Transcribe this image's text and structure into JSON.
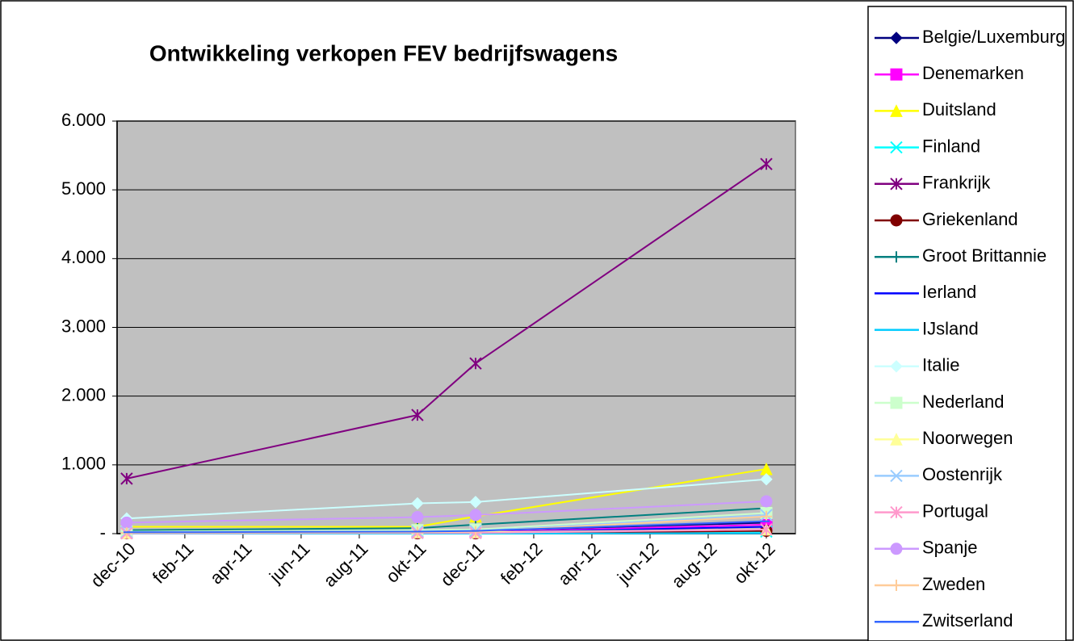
{
  "chart_data": {
    "type": "line",
    "title": "Ontwikkeling verkopen FEV bedrijfswagens",
    "x": [
      "2010-12",
      "2011-10",
      "2011-12",
      "2012-10"
    ],
    "xlim": [
      "2010-12",
      "2012-11"
    ],
    "xticks": [
      {
        "value": "2010-12",
        "label": "dec-10"
      },
      {
        "value": "2011-02",
        "label": "feb-11"
      },
      {
        "value": "2011-04",
        "label": "apr-11"
      },
      {
        "value": "2011-06",
        "label": "jun-11"
      },
      {
        "value": "2011-08",
        "label": "aug-11"
      },
      {
        "value": "2011-10",
        "label": "okt-11"
      },
      {
        "value": "2011-12",
        "label": "dec-11"
      },
      {
        "value": "2012-02",
        "label": "feb-12"
      },
      {
        "value": "2012-04",
        "label": "apr-12"
      },
      {
        "value": "2012-06",
        "label": "jun-12"
      },
      {
        "value": "2012-08",
        "label": "aug-12"
      },
      {
        "value": "2012-10",
        "label": "okt-12"
      }
    ],
    "ylim": [
      0,
      6000
    ],
    "yticks": [
      {
        "value": 0,
        "label": "-"
      },
      {
        "value": 1000,
        "label": "1.000"
      },
      {
        "value": 2000,
        "label": "2.000"
      },
      {
        "value": 3000,
        "label": "3.000"
      },
      {
        "value": 4000,
        "label": "4.000"
      },
      {
        "value": 5000,
        "label": "5.000"
      },
      {
        "value": 6000,
        "label": "6.000"
      }
    ],
    "grid": true,
    "legend": "right",
    "series": [
      {
        "name": "Belgie/Luxemburg",
        "color": "#000080",
        "marker": "diamond",
        "values": [
          20,
          30,
          40,
          160
        ]
      },
      {
        "name": "Denemarken",
        "color": "#FF00FF",
        "marker": "square",
        "values": [
          10,
          20,
          20,
          130
        ]
      },
      {
        "name": "Duitsland",
        "color": "#FFFF00",
        "marker": "triangle",
        "values": [
          100,
          100,
          250,
          940
        ]
      },
      {
        "name": "Finland",
        "color": "#00FFFF",
        "marker": "x",
        "values": [
          5,
          10,
          10,
          30
        ]
      },
      {
        "name": "Frankrijk",
        "color": "#800080",
        "marker": "star",
        "values": [
          800,
          1725,
          2475,
          5375
        ]
      },
      {
        "name": "Griekenland",
        "color": "#800000",
        "marker": "circle",
        "values": [
          5,
          5,
          5,
          40
        ]
      },
      {
        "name": "Groot Brittannie",
        "color": "#008080",
        "marker": "plus",
        "values": [
          50,
          80,
          130,
          370
        ]
      },
      {
        "name": "Ierland",
        "color": "#0000FF",
        "marker": "dash",
        "values": [
          10,
          15,
          15,
          100
        ]
      },
      {
        "name": "IJsland",
        "color": "#00CCFF",
        "marker": "dash",
        "values": [
          0,
          0,
          0,
          5
        ]
      },
      {
        "name": "Italie",
        "color": "#CCFFFF",
        "marker": "diamond",
        "values": [
          220,
          440,
          460,
          790
        ]
      },
      {
        "name": "Nederland",
        "color": "#CCFFCC",
        "marker": "square",
        "values": [
          30,
          50,
          60,
          300
        ]
      },
      {
        "name": "Noorwegen",
        "color": "#FFFF99",
        "marker": "triangle",
        "values": [
          10,
          20,
          20,
          60
        ]
      },
      {
        "name": "Oostenrijk",
        "color": "#99CCFF",
        "marker": "x",
        "values": [
          20,
          30,
          40,
          270
        ]
      },
      {
        "name": "Portugal",
        "color": "#FF99CC",
        "marker": "star",
        "values": [
          5,
          10,
          10,
          60
        ]
      },
      {
        "name": "Spanje",
        "color": "#CC99FF",
        "marker": "circle",
        "values": [
          160,
          240,
          270,
          470
        ]
      },
      {
        "name": "Zweden",
        "color": "#FFCC99",
        "marker": "plus",
        "values": [
          10,
          20,
          30,
          250
        ]
      },
      {
        "name": "Zwitserland",
        "color": "#3366FF",
        "marker": "dash",
        "values": [
          20,
          30,
          40,
          180
        ]
      }
    ]
  }
}
